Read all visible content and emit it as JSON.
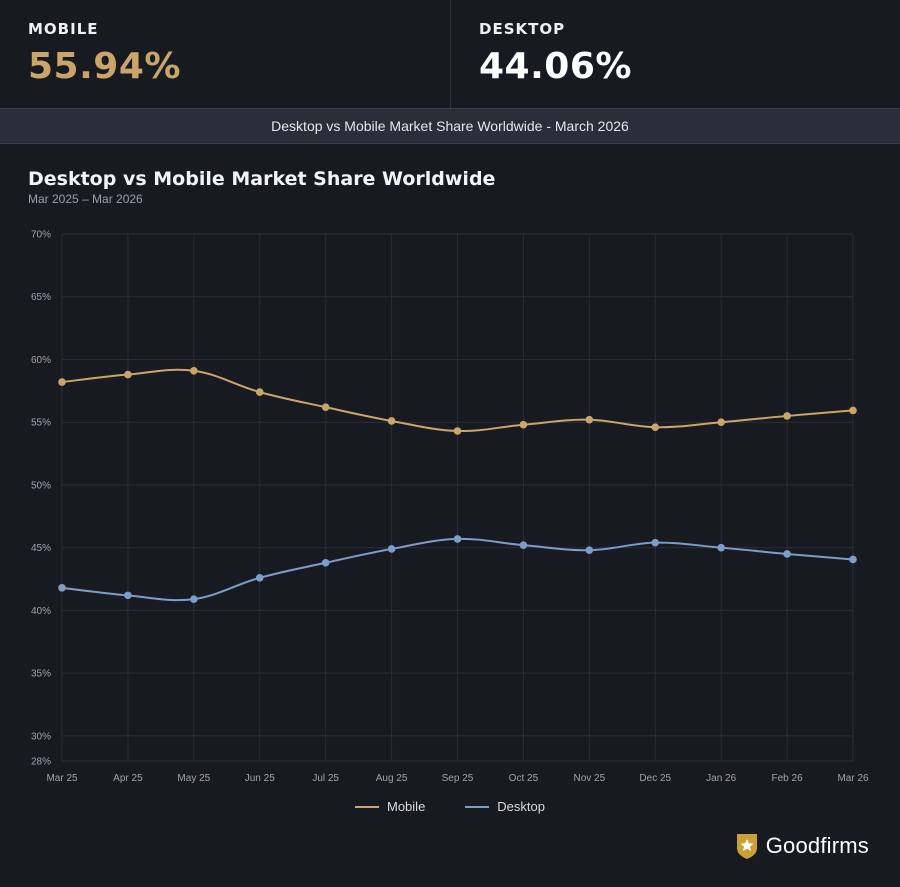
{
  "stats": {
    "mobile": {
      "label": "MOBILE",
      "value": "55.94%"
    },
    "desktop": {
      "label": "DESKTOP",
      "value": "44.06%"
    }
  },
  "banner": {
    "text": "Desktop vs Mobile Market Share Worldwide - March 2026"
  },
  "brand": {
    "name": "Goodfirms",
    "icon": "shield-star-icon"
  },
  "colors": {
    "mobile": "#c9a569",
    "desktop": "#7c9cc9",
    "background": "#181a22",
    "grid": "#2a2d37"
  },
  "chart_data": {
    "type": "line",
    "title": "Desktop vs Mobile Market Share Worldwide",
    "subtitle": "Mar 2025 – Mar 2026",
    "xlabel": "",
    "ylabel": "",
    "categories": [
      "Mar 25",
      "Apr 25",
      "May 25",
      "Jun 25",
      "Jul 25",
      "Aug 25",
      "Sep 25",
      "Oct 25",
      "Nov 25",
      "Dec 25",
      "Jan 26",
      "Feb 26",
      "Mar 26"
    ],
    "y_ticks": [
      {
        "value": 70,
        "label": "70%"
      },
      {
        "value": 65,
        "label": "65%"
      },
      {
        "value": 60,
        "label": "60%"
      },
      {
        "value": 55,
        "label": "55%"
      },
      {
        "value": 50,
        "label": "50%"
      },
      {
        "value": 45,
        "label": "45%"
      },
      {
        "value": 40,
        "label": "40%"
      },
      {
        "value": 35,
        "label": "35%"
      },
      {
        "value": 30,
        "label": "30%"
      },
      {
        "value": 28,
        "label": "28%"
      }
    ],
    "ylim": [
      28,
      70
    ],
    "grid": true,
    "legend_position": "bottom",
    "series": [
      {
        "name": "Mobile",
        "color": "#c9a569",
        "values": [
          58.2,
          58.8,
          59.1,
          57.4,
          56.2,
          55.1,
          54.3,
          54.8,
          55.2,
          54.6,
          55.0,
          55.5,
          55.94
        ]
      },
      {
        "name": "Desktop",
        "color": "#7c9cc9",
        "values": [
          41.8,
          41.2,
          40.9,
          42.6,
          43.8,
          44.9,
          45.7,
          45.2,
          44.8,
          45.4,
          45.0,
          44.5,
          44.06
        ]
      }
    ]
  }
}
